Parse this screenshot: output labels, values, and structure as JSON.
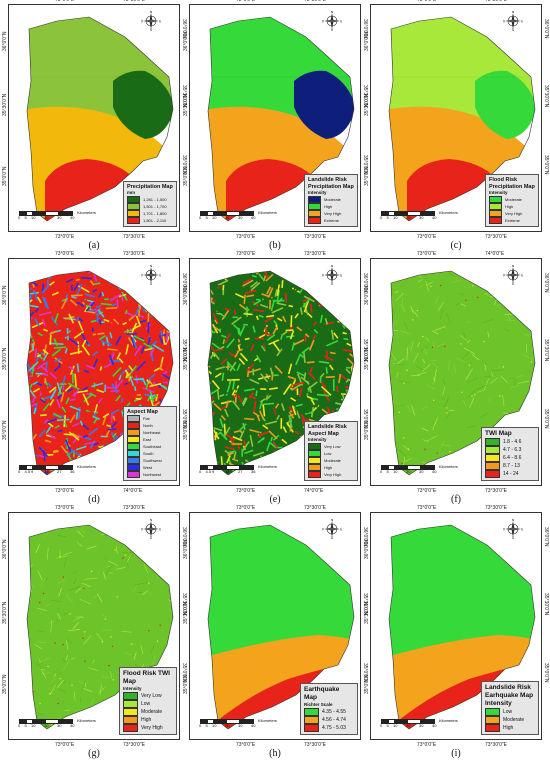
{
  "panels": [
    {
      "id": "a",
      "caption": "(a)",
      "top_labels": [
        "73°0'0\"E",
        "73°30'0\"E"
      ],
      "bottom_labels": [
        "73°0'0\"E",
        "73°30'0\"E"
      ],
      "left_labels": [
        "36°0'0\"N",
        "35°30'0\"N",
        "35°0'0\"N"
      ],
      "right_labels": [
        "36°0'0\"N",
        "35°30'0\"N",
        "35°0'0\"N"
      ],
      "legend": {
        "title": "Precipitation Map",
        "subtitle": "mm",
        "items": [
          {
            "label": "1,281 - 1,500",
            "color": "#1a6b16"
          },
          {
            "label": "1,501 - 1,700",
            "color": "#8bc43a"
          },
          {
            "label": "1,701 - 1,800",
            "color": "#f3b80c"
          },
          {
            "label": "1,801 - 2,110",
            "color": "#e8231a"
          }
        ]
      },
      "scale": {
        "ticks": [
          "0",
          "5",
          "10",
          "20",
          "30",
          "40"
        ],
        "unit": "Kilometers"
      },
      "colors": {
        "band1": "#8bc43a",
        "band2": "#8bc43a",
        "band3": "#f3b80c",
        "band4": "#e8231a",
        "east": "#1a6b16"
      }
    },
    {
      "id": "b",
      "caption": "(b)",
      "top_labels": [
        "73°0'0\"E",
        "73°30'0\"E"
      ],
      "bottom_labels": [
        "73°0'0\"E",
        "73°30'0\"E"
      ],
      "left_labels": [
        "36°0'0\"N",
        "35°30'0\"N",
        "35°0'0\"N"
      ],
      "right_labels": [
        "36°0'0\"N",
        "35°30'0\"N",
        "35°0'0\"N"
      ],
      "legend": {
        "title": "Landslide Risk Precipitation Map",
        "subtitle": "Intensity",
        "items": [
          {
            "label": "Moderate",
            "color": "#0d1f7a"
          },
          {
            "label": "High",
            "color": "#35d93a"
          },
          {
            "label": "Very High",
            "color": "#f3a41c"
          },
          {
            "label": "Extreme",
            "color": "#e8231a"
          }
        ]
      },
      "scale": {
        "ticks": [
          "0",
          "5",
          "10",
          "20",
          "30",
          "40"
        ],
        "unit": "Kilometers"
      },
      "colors": {
        "band1": "#35d93a",
        "band2": "#35d93a",
        "band3": "#f3a41c",
        "band4": "#e8231a",
        "east": "#0d1f7a"
      }
    },
    {
      "id": "c",
      "caption": "(c)",
      "top_labels": [
        "73°0'0\"E",
        "73°30'0\"E"
      ],
      "bottom_labels": [
        "73°0'0\"E",
        "73°30'0\"E"
      ],
      "left_labels": [
        "36°0'0\"N",
        "35°30'0\"N",
        "35°0'0\"N"
      ],
      "right_labels": [
        "36°0'0\"N",
        "35°30'0\"N",
        "35°0'0\"N"
      ],
      "legend": {
        "title": "Flood Risk Precipitation Map",
        "subtitle": "Intensity",
        "items": [
          {
            "label": "Moderate",
            "color": "#35d93a"
          },
          {
            "label": "High",
            "color": "#a7e83a"
          },
          {
            "label": "Very High",
            "color": "#f3a41c"
          },
          {
            "label": "Extreme",
            "color": "#e8231a"
          }
        ]
      },
      "scale": {
        "ticks": [
          "0",
          "5",
          "10",
          "20",
          "30",
          "40"
        ],
        "unit": "Kilometers"
      },
      "colors": {
        "band1": "#a7e83a",
        "band2": "#a7e83a",
        "band3": "#f3a41c",
        "band4": "#e8231a",
        "east": "#35d93a"
      }
    },
    {
      "id": "d",
      "caption": "(d)",
      "top_labels": [
        "73°0'0\"E",
        "73°30'0\"E"
      ],
      "bottom_labels": [
        "73°0'0\"E",
        "74°0'0\"E"
      ],
      "left_labels": [
        "36°0'0\"N",
        "35°30'0\"N",
        "35°0'0\"N"
      ],
      "right_labels": [
        "36°0'0\"N",
        "35°30'0\"N",
        "35°0'0\"N"
      ],
      "legend": {
        "title": "Aspect Map",
        "subtitle": "",
        "items": [
          {
            "label": "Flat",
            "color": "#b0b0b0"
          },
          {
            "label": "North",
            "color": "#e8231a"
          },
          {
            "label": "Northeast",
            "color": "#f39a1c"
          },
          {
            "label": "East",
            "color": "#f3e81c"
          },
          {
            "label": "Southeast",
            "color": "#35d93a"
          },
          {
            "label": "South",
            "color": "#35d9d9"
          },
          {
            "label": "Southwest",
            "color": "#3a7ae8"
          },
          {
            "label": "West",
            "color": "#2a2ae8"
          },
          {
            "label": "Northwest",
            "color": "#d935d9"
          }
        ]
      },
      "scale": {
        "ticks": [
          "0",
          "4.5",
          "9",
          "18",
          "27",
          "36"
        ],
        "unit": "Kilometers"
      },
      "colors": {
        "texture": [
          "#e8231a",
          "#f39a1c",
          "#f3e81c",
          "#35d93a",
          "#35d9d9",
          "#3a7ae8",
          "#2a2ae8",
          "#d935d9"
        ]
      }
    },
    {
      "id": "e",
      "caption": "(e)",
      "top_labels": [
        "73°0'0\"E",
        "73°30'0\"E"
      ],
      "bottom_labels": [
        "73°0'0\"E",
        "74°0'0\"E"
      ],
      "left_labels": [
        "36°0'0\"N",
        "35°30'0\"N",
        "35°0'0\"N"
      ],
      "right_labels": [
        "36°0'0\"N",
        "35°30'0\"N",
        "35°0'0\"N"
      ],
      "legend": {
        "title": "Landslide Risk Aspect Map",
        "subtitle": "Intensity",
        "items": [
          {
            "label": "Very Low",
            "color": "#1a6b16"
          },
          {
            "label": "Low",
            "color": "#35d93a"
          },
          {
            "label": "Moderate",
            "color": "#f3e81c"
          },
          {
            "label": "High",
            "color": "#f39a1c"
          },
          {
            "label": "Very High",
            "color": "#e8231a"
          }
        ]
      },
      "scale": {
        "ticks": [
          "0",
          "4.5",
          "9",
          "18",
          "27",
          "36"
        ],
        "unit": "Kilometers"
      },
      "colors": {
        "texture": [
          "#1a6b16",
          "#35d93a",
          "#8bc43a",
          "#f3e81c",
          "#f39a1c",
          "#e8231a"
        ]
      }
    },
    {
      "id": "f",
      "caption": "(f)",
      "top_labels": [
        "73°0'0\"E",
        "74°0'0\"E"
      ],
      "bottom_labels": [
        "73°0'0\"E",
        "73°30'0\"E"
      ],
      "left_labels": [
        "36°0'0\"N",
        "35°30'0\"N",
        "35°0'0\"N"
      ],
      "right_labels": [
        "36°0'0\"N",
        "35°30'0\"N",
        "35°0'0\"N"
      ],
      "legend": {
        "title": "TWI Map",
        "subtitle": "",
        "items": [
          {
            "label": "1.8 - 4.6",
            "color": "#35b02a"
          },
          {
            "label": "4.7 - 6.3",
            "color": "#a7e83a"
          },
          {
            "label": "6.4 - 8.6",
            "color": "#f3e81c"
          },
          {
            "label": "8.7 - 13",
            "color": "#f39a1c"
          },
          {
            "label": "14 - 24",
            "color": "#e8231a"
          }
        ]
      },
      "scale": {
        "ticks": [
          "0",
          "5",
          "10",
          "20",
          "30",
          "40"
        ],
        "unit": "Kilometers"
      },
      "colors": {
        "texture": [
          "#6cc42a",
          "#8ed035",
          "#a7e83a",
          "#5aae22",
          "#c7e84a"
        ]
      }
    },
    {
      "id": "g",
      "caption": "(g)",
      "top_labels": [
        "73°0'0\"E",
        "73°30'0\"E"
      ],
      "bottom_labels": [
        "73°0'0\"E",
        "73°30'0\"E"
      ],
      "left_labels": [
        "36°0'0\"N",
        "35°30'0\"N",
        "35°0'0\"N"
      ],
      "right_labels": [
        "36°0'0\"N",
        "35°30'0\"N",
        "35°0'0\"N"
      ],
      "legend": {
        "title": "Flood Risk TWI Map",
        "subtitle": "Intensity",
        "items": [
          {
            "label": "Very Low",
            "color": "#35b02a"
          },
          {
            "label": "Low",
            "color": "#a7e83a"
          },
          {
            "label": "Moderate",
            "color": "#f3e81c"
          },
          {
            "label": "High",
            "color": "#f39a1c"
          },
          {
            "label": "Very High",
            "color": "#e8231a"
          }
        ]
      },
      "scale": {
        "ticks": [
          "0",
          "5",
          "10",
          "20",
          "30",
          "40"
        ],
        "unit": "Kilometers"
      },
      "colors": {
        "texture": [
          "#6cc42a",
          "#8ed035",
          "#a7e83a",
          "#5aae22",
          "#c7e84a"
        ]
      }
    },
    {
      "id": "h",
      "caption": "(h)",
      "top_labels": [
        "73°0'0\"E",
        "73°30'0\"E"
      ],
      "bottom_labels": [
        "73°0'0\"E",
        "73°30'0\"E"
      ],
      "left_labels": [
        "36°0'0\"N",
        "35°30'0\"N",
        "35°0'0\"N"
      ],
      "right_labels": [
        "36°0'0\"N",
        "35°30'0\"N",
        "35°0'0\"N"
      ],
      "legend": {
        "title": "Earthquake Map",
        "subtitle": "Richter Scale",
        "items": [
          {
            "label": "4.35 - 4.55",
            "color": "#35d93a"
          },
          {
            "label": "4.56 - 4.74",
            "color": "#f3a41c"
          },
          {
            "label": "4.75 - 5.03",
            "color": "#e8231a"
          }
        ]
      },
      "scale": {
        "ticks": [
          "0",
          "5",
          "10",
          "20",
          "30",
          "40"
        ],
        "unit": "Kilometers"
      },
      "colors": {
        "north": "#35d93a",
        "middle": "#f3a41c",
        "south": "#e8231a"
      }
    },
    {
      "id": "i",
      "caption": "(i)",
      "top_labels": [
        "73°0'0\"E",
        "73°30'0\"E"
      ],
      "bottom_labels": [
        "73°0'0\"E",
        "73°30'0\"E"
      ],
      "left_labels": [
        "36°0'0\"N",
        "35°30'0\"N",
        "35°0'0\"N"
      ],
      "right_labels": [
        "36°0'0\"N",
        "35°30'0\"N",
        "35°0'0\"N"
      ],
      "legend": {
        "title": "Landslide Risk Earhquake Map Intensity",
        "subtitle": "",
        "items": [
          {
            "label": "Low",
            "color": "#35d93a"
          },
          {
            "label": "Moderate",
            "color": "#f3a41c"
          },
          {
            "label": "High",
            "color": "#e8231a"
          }
        ]
      },
      "scale": {
        "ticks": [
          "0",
          "5",
          "10",
          "20",
          "30",
          "40"
        ],
        "unit": "Kilometers"
      },
      "colors": {
        "north": "#35d93a",
        "middle": "#f3a41c",
        "south": "#e8231a"
      }
    }
  ],
  "compass": {
    "n": "N",
    "s": "S",
    "e": "E",
    "w": "W"
  }
}
